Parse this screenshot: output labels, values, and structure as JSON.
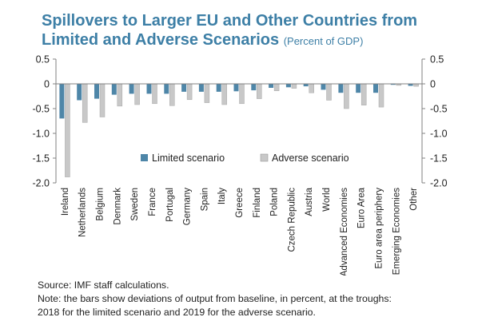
{
  "header": {
    "title_line1": "Spillovers to Larger EU and Other Countries from",
    "title_line2": "Limited and Adverse Scenarios",
    "subtitle": "(Percent of GDP)"
  },
  "colors": {
    "title": "#3d7fa6",
    "limited": "#4e86a8",
    "adverse": "#c8c8c8",
    "axis": "#808080"
  },
  "chart_data": {
    "type": "bar",
    "title": "Spillovers to Larger EU and Other Countries from Limited and Adverse Scenarios",
    "subtitle": "(Percent of GDP)",
    "categories": [
      "Ireland",
      "Netherlands",
      "Belgium",
      "Denmark",
      "Sweden",
      "France",
      "Portugal",
      "Germany",
      "Spain",
      "Italy",
      "Greece",
      "Finland",
      "Poland",
      "Czech Republic",
      "Austria",
      "World",
      "Advanced Economies",
      "Euro Area",
      "Euro area periphery",
      "Emerging Economies",
      "Other"
    ],
    "series": [
      {
        "name": "Limited scenario",
        "color": "#4e86a8",
        "values": [
          -0.7,
          -0.33,
          -0.3,
          -0.22,
          -0.2,
          -0.2,
          -0.2,
          -0.16,
          -0.16,
          -0.16,
          -0.15,
          -0.13,
          -0.08,
          -0.07,
          -0.05,
          -0.12,
          -0.18,
          -0.18,
          -0.18,
          -0.02,
          -0.04
        ]
      },
      {
        "name": "Adverse scenario",
        "color": "#c8c8c8",
        "values": [
          -1.88,
          -0.78,
          -0.67,
          -0.45,
          -0.42,
          -0.4,
          -0.44,
          -0.32,
          -0.38,
          -0.42,
          -0.4,
          -0.3,
          -0.14,
          -0.09,
          -0.18,
          -0.33,
          -0.5,
          -0.43,
          -0.47,
          -0.03,
          -0.05
        ]
      }
    ],
    "ylim": [
      -2.0,
      0.5
    ],
    "yticks": [
      "0.5",
      "0",
      "-0.5",
      "-1.0",
      "-1.5",
      "-2.0"
    ],
    "ytick_values": [
      0.5,
      0,
      -0.5,
      -1.0,
      -1.5,
      -2.0
    ],
    "secondary_yticks": [
      "0.5",
      "0",
      "-0.5",
      "-1.0",
      "-1.5",
      "-2.0"
    ],
    "legend_position": "lower-center inside plot",
    "grid": false
  },
  "notes": {
    "source": "Source: IMF staff calculations.",
    "note_line1": "Note: the bars show deviations of output from baseline, in percent, at the troughs:",
    "note_line2": "2018 for the limited scenario and 2019 for the adverse scenario."
  }
}
